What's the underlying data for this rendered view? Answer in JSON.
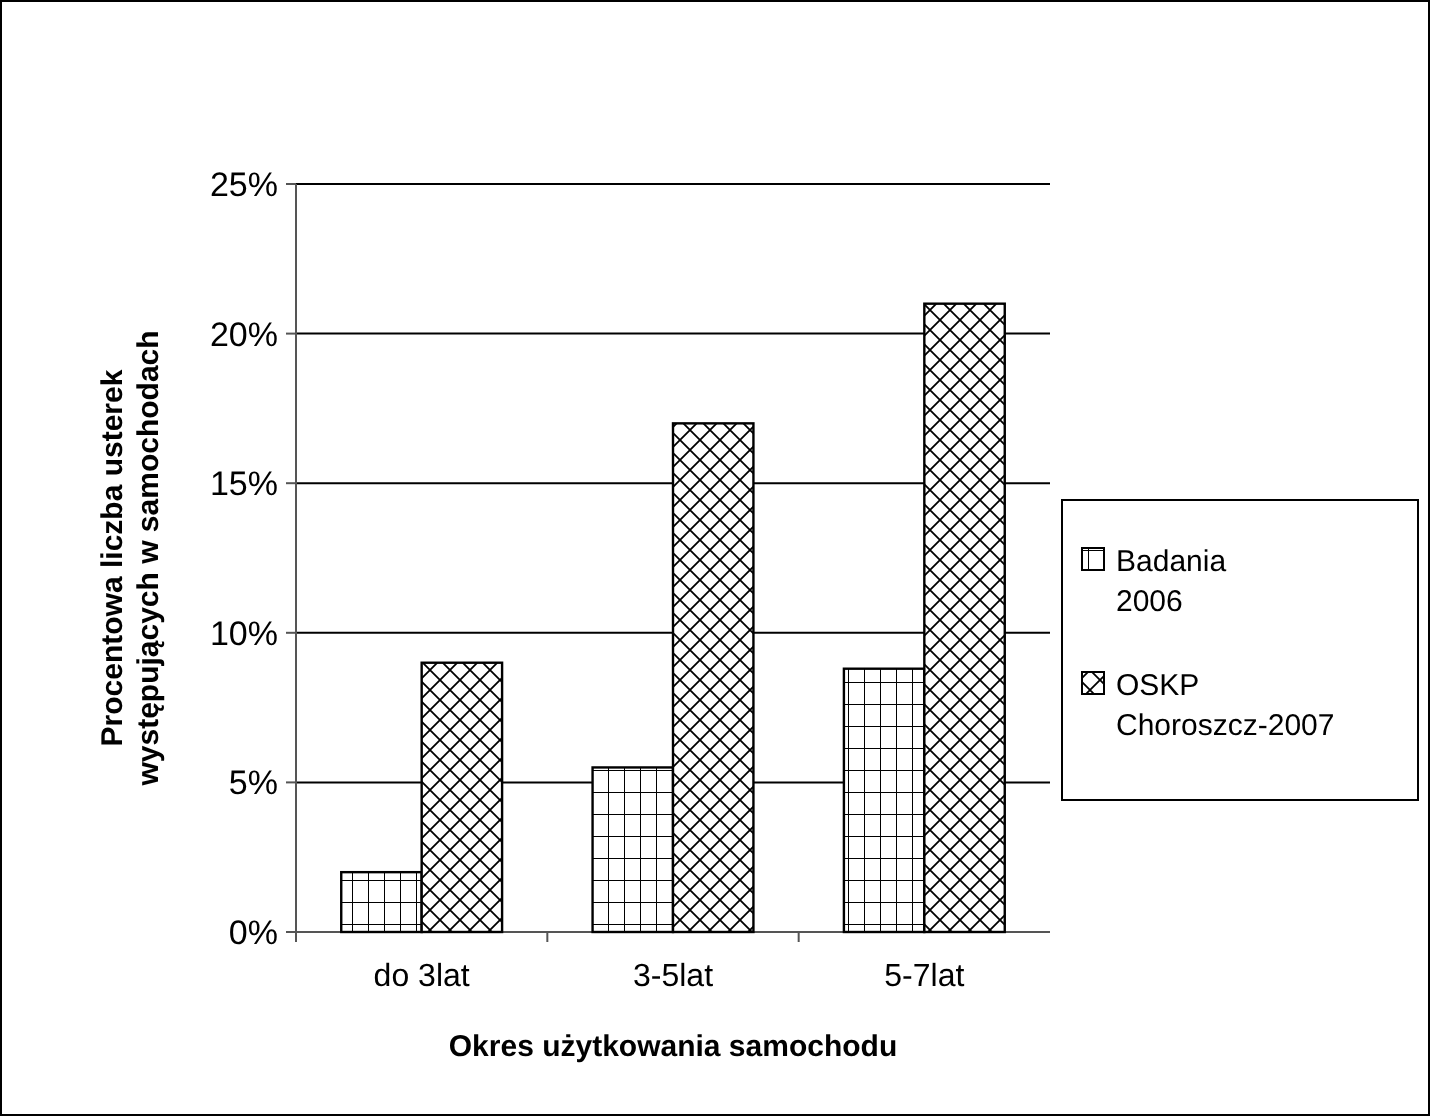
{
  "chart_data": {
    "type": "bar",
    "xlabel": "Okres użytkowania samochodu",
    "ylabel": "Procentowa liczba usterek występujących w samochodach",
    "categories": [
      "do 3lat",
      "3-5lat",
      "5-7lat"
    ],
    "series": [
      {
        "name": "Badania 2006",
        "color": "#000000",
        "values": [
          2,
          5.5,
          8.8
        ]
      },
      {
        "name": "OSKP Choroszcz-2007",
        "color": "#000000",
        "values": [
          9,
          17,
          21
        ]
      }
    ],
    "ylim": [
      0,
      25
    ],
    "yticks": [
      {
        "value": 0,
        "label": "0%"
      },
      {
        "value": 5,
        "label": "5%"
      },
      {
        "value": 10,
        "label": "10%"
      },
      {
        "value": 15,
        "label": "15%"
      },
      {
        "value": 20,
        "label": "20%"
      },
      {
        "value": 25,
        "label": "25%"
      }
    ],
    "grid": "y",
    "legend": "right"
  }
}
